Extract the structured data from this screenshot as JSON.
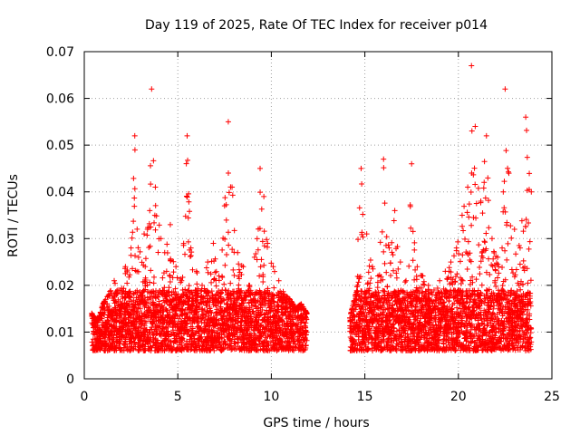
{
  "chart_data": {
    "type": "scatter",
    "title": "Day 119 of 2025, Rate Of TEC Index for receiver p014",
    "xlabel": "GPS time / hours",
    "ylabel": "ROTI / TECUs",
    "xlim": [
      0,
      25
    ],
    "ylim": [
      0,
      0.07
    ],
    "x_ticks": [
      0,
      5,
      10,
      15,
      20,
      25
    ],
    "x_tick_labels": [
      "0",
      "5",
      "10",
      "15",
      "20",
      "25"
    ],
    "y_ticks": [
      0,
      0.01,
      0.02,
      0.03,
      0.04,
      0.05,
      0.06,
      0.07
    ],
    "y_tick_labels": [
      "0",
      "0.01",
      "0.02",
      "0.03",
      "0.04",
      "0.05",
      "0.06",
      "0.07"
    ],
    "grid": true,
    "marker": "+",
    "marker_color": "#ff0000",
    "data_gap_hours": [
      12.1,
      14.2
    ],
    "series": [
      {
        "name": "ROTI",
        "x": [
          0.4,
          0.7,
          1.0,
          1.3,
          1.6,
          1.9,
          2.2,
          2.5,
          2.7,
          2.9,
          3.2,
          3.5,
          3.6,
          3.8,
          4.1,
          4.3,
          4.6,
          4.9,
          5.2,
          5.5,
          5.7,
          6.0,
          6.3,
          6.6,
          6.9,
          7.2,
          7.5,
          7.7,
          7.9,
          8.2,
          8.5,
          8.8,
          9.1,
          9.4,
          9.6,
          9.8,
          10.1,
          10.4,
          10.7,
          11.0,
          11.3,
          11.6,
          11.9,
          14.2,
          14.5,
          14.8,
          15.1,
          15.4,
          15.7,
          16.0,
          16.3,
          16.6,
          16.9,
          17.2,
          17.5,
          17.8,
          18.1,
          18.4,
          18.7,
          19.0,
          19.3,
          19.6,
          19.9,
          20.2,
          20.5,
          20.7,
          20.9,
          21.2,
          21.5,
          21.8,
          22.1,
          22.4,
          22.5,
          22.7,
          23.0,
          23.3,
          23.6,
          23.9
        ],
        "y": [
          0.014,
          0.012,
          0.016,
          0.018,
          0.021,
          0.019,
          0.024,
          0.028,
          0.052,
          0.026,
          0.031,
          0.036,
          0.062,
          0.041,
          0.03,
          0.027,
          0.033,
          0.024,
          0.021,
          0.052,
          0.028,
          0.023,
          0.02,
          0.025,
          0.029,
          0.022,
          0.037,
          0.055,
          0.041,
          0.027,
          0.024,
          0.02,
          0.026,
          0.045,
          0.039,
          0.029,
          0.024,
          0.021,
          0.018,
          0.017,
          0.015,
          0.016,
          0.014,
          0.013,
          0.018,
          0.045,
          0.031,
          0.024,
          0.022,
          0.047,
          0.028,
          0.036,
          0.025,
          0.021,
          0.046,
          0.024,
          0.022,
          0.02,
          0.019,
          0.021,
          0.023,
          0.025,
          0.028,
          0.035,
          0.041,
          0.067,
          0.054,
          0.038,
          0.052,
          0.03,
          0.026,
          0.04,
          0.062,
          0.044,
          0.032,
          0.028,
          0.056,
          0.04
        ]
      }
    ]
  }
}
